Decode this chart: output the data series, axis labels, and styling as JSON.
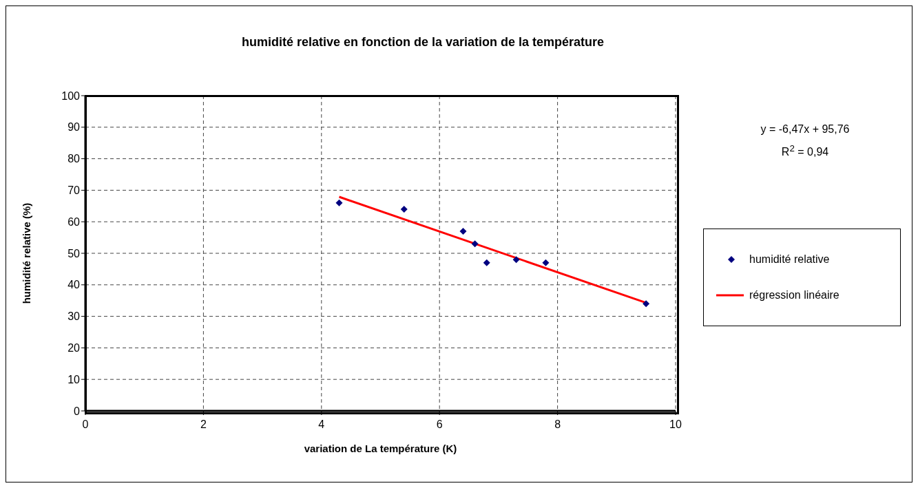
{
  "chart_data": {
    "type": "scatter",
    "title": "humidité relative en fonction de la variation de la température",
    "xlabel": "variation de La température (K)",
    "ylabel": "humidité relative (%)",
    "xlim": [
      0,
      10
    ],
    "xticks": [
      0,
      2,
      4,
      6,
      8,
      10
    ],
    "ylim": [
      0,
      100
    ],
    "yticks": [
      0,
      10,
      20,
      30,
      40,
      50,
      60,
      70,
      80,
      90,
      100
    ],
    "grid": true,
    "legend": "right",
    "series": [
      {
        "name": "humidité relative",
        "marker": "diamond",
        "color": "#000080",
        "x": [
          4.3,
          5.4,
          6.4,
          6.6,
          6.8,
          7.3,
          7.8,
          9.5
        ],
        "values": [
          66,
          64,
          57,
          53,
          47,
          48,
          47,
          34
        ]
      },
      {
        "name": "régression linéaire",
        "type": "line",
        "marker": "none",
        "color": "#ff0000",
        "x": [
          4.3,
          9.5
        ],
        "values": [
          67.9,
          34.3
        ]
      }
    ],
    "annotations": [
      "y = -6,47x + 95,76",
      "R$^{2}$ = 0,94"
    ]
  }
}
